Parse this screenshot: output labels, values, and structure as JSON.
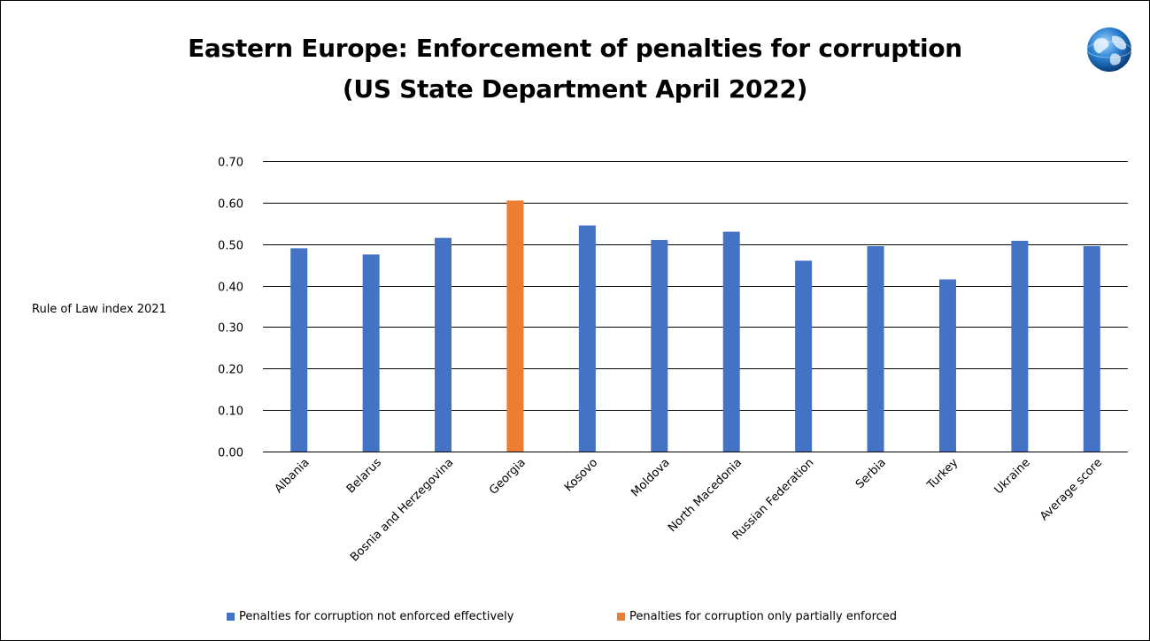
{
  "title_line1": "Eastern Europe: Enforcement of penalties for corruption",
  "title_line2": "(US State Department April 2022)",
  "logo_icon": "globe-icon",
  "colors": {
    "not_enforced": "#4472C4",
    "partially_enforced": "#ED7D31",
    "gridline": "#000000",
    "text": "#000000"
  },
  "chart_data": {
    "type": "bar",
    "title": "Eastern Europe: Enforcement of penalties for corruption (US State Department April 2022)",
    "xlabel": "",
    "ylabel": "Rule of Law index 2021",
    "ylim": [
      0,
      0.7
    ],
    "yticks": [
      "0.00",
      "0.10",
      "0.20",
      "0.30",
      "0.40",
      "0.50",
      "0.60",
      "0.70"
    ],
    "grid": true,
    "legend_position": "bottom",
    "categories": [
      "Albania",
      "Belarus",
      "Bosnia and Herzegovina",
      "Georgia",
      "Kosovo",
      "Moldova",
      "North Macedonia",
      "Russian Federation",
      "Serbia",
      "Turkey",
      "Ukraine",
      "Average score"
    ],
    "series": [
      {
        "name": "Penalties for corruption not enforced effectively",
        "color": "#4472C4",
        "values": [
          0.49,
          0.475,
          0.515,
          null,
          0.545,
          0.51,
          0.53,
          0.46,
          0.495,
          0.415,
          0.508,
          0.495
        ]
      },
      {
        "name": "Penalties for corruption only partially enforced",
        "color": "#ED7D31",
        "values": [
          null,
          null,
          null,
          0.605,
          null,
          null,
          null,
          null,
          null,
          null,
          null,
          null
        ]
      }
    ]
  }
}
